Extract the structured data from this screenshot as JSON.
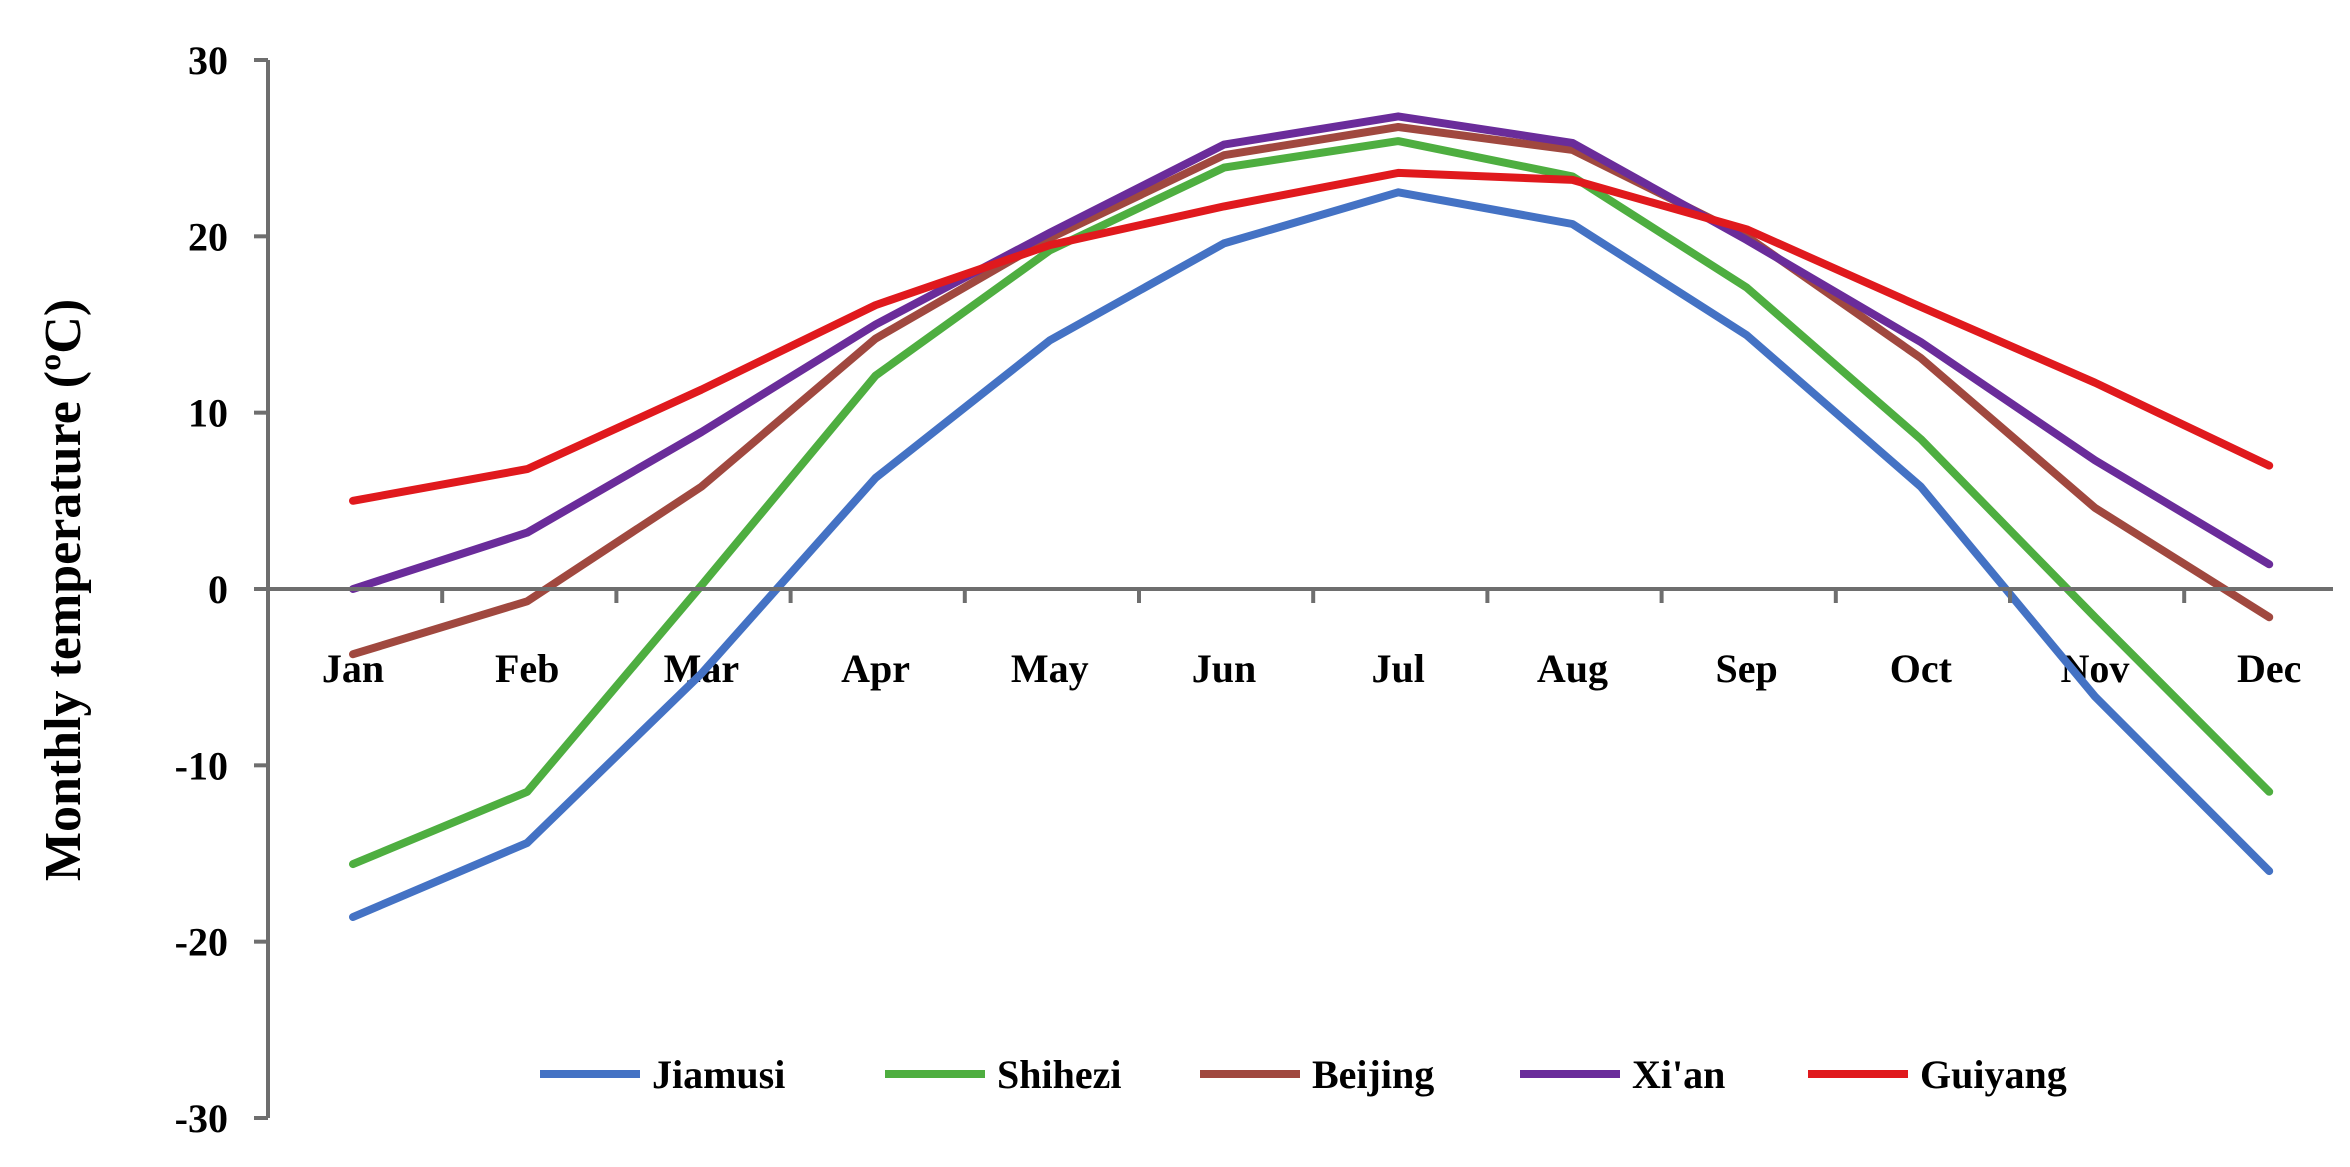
{
  "chart_data": {
    "type": "line",
    "title": "",
    "xlabel": "",
    "ylabel": "Monthly temperature (ºC)",
    "ylim": [
      -30,
      30
    ],
    "yticks": [
      "30",
      "20",
      "10",
      "0",
      "-10",
      "-20",
      "-30"
    ],
    "grid": false,
    "legend": "bottom",
    "categories": [
      "Jan",
      "Feb",
      "Mar",
      "Apr",
      "May",
      "Jun",
      "Jul",
      "Aug",
      "Sep",
      "Oct",
      "Nov",
      "Dec"
    ],
    "series": [
      {
        "name": "Jiamusi",
        "color": "#4472c4",
        "values": [
          -18.6,
          -14.4,
          -4.8,
          6.3,
          14.1,
          19.6,
          22.5,
          20.7,
          14.4,
          5.8,
          -6.1,
          -16.0
        ]
      },
      {
        "name": "Shihezi",
        "color": "#4eae40",
        "values": [
          -15.6,
          -11.5,
          0.2,
          12.1,
          19.2,
          23.9,
          25.4,
          23.4,
          17.1,
          8.5,
          -1.6,
          -11.5
        ]
      },
      {
        "name": "Beijing",
        "color": "#a0483f",
        "values": [
          -3.7,
          -0.7,
          5.8,
          14.2,
          19.9,
          24.6,
          26.2,
          24.9,
          20.0,
          13.1,
          4.6,
          -1.6
        ]
      },
      {
        "name": "Xi'an",
        "color": "#6a2c9a",
        "values": [
          0.0,
          3.2,
          8.9,
          15.0,
          20.2,
          25.2,
          26.8,
          25.3,
          19.8,
          14.0,
          7.3,
          1.4
        ]
      },
      {
        "name": "Guiyang",
        "color": "#e0191d",
        "values": [
          5.0,
          6.8,
          11.3,
          16.1,
          19.5,
          21.7,
          23.6,
          23.2,
          20.4,
          16.0,
          11.7,
          7.0
        ]
      }
    ]
  }
}
